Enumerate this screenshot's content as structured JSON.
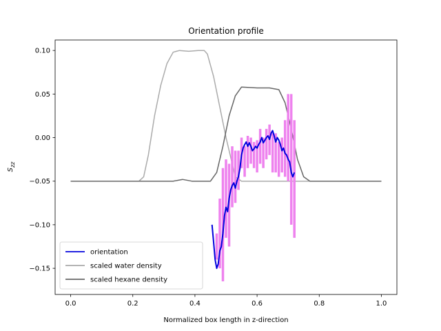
{
  "chart_data": {
    "type": "line",
    "title": "Orientation profile",
    "xlabel": "Normalized box length in z-direction",
    "ylabel": {
      "base": "S",
      "sub": "zz"
    },
    "xlim": [
      -0.05,
      1.05
    ],
    "ylim": [
      -0.18,
      0.112
    ],
    "xticks": [
      0.0,
      0.2,
      0.4,
      0.6,
      0.8,
      1.0
    ],
    "xtick_labels": [
      "0.0",
      "0.2",
      "0.4",
      "0.6",
      "0.8",
      "1.0"
    ],
    "yticks": [
      -0.15,
      -0.1,
      -0.05,
      0.0,
      0.05,
      0.1
    ],
    "ytick_labels": [
      "−0.15",
      "−0.10",
      "−0.05",
      "0.00",
      "0.05",
      "0.10"
    ],
    "grid": false,
    "legend_position": "lower-left",
    "series": [
      {
        "name": "scaled water density",
        "color": "#aaaaaa",
        "x": [
          0.0,
          0.22,
          0.235,
          0.25,
          0.27,
          0.29,
          0.31,
          0.33,
          0.35,
          0.38,
          0.41,
          0.43,
          0.44,
          0.46,
          0.48,
          0.5,
          0.52,
          0.53,
          0.55,
          1.0
        ],
        "y": [
          -0.05,
          -0.05,
          -0.045,
          -0.02,
          0.025,
          0.06,
          0.085,
          0.098,
          0.1,
          0.099,
          0.1,
          0.1,
          0.096,
          0.07,
          0.035,
          0.0,
          -0.03,
          -0.045,
          -0.05,
          -0.05
        ]
      },
      {
        "name": "scaled hexane density",
        "color": "#666666",
        "x": [
          0.0,
          0.33,
          0.36,
          0.39,
          0.45,
          0.47,
          0.49,
          0.51,
          0.53,
          0.55,
          0.6,
          0.64,
          0.67,
          0.69,
          0.71,
          0.73,
          0.75,
          0.77,
          1.0
        ],
        "y": [
          -0.05,
          -0.05,
          -0.048,
          -0.05,
          -0.05,
          -0.04,
          -0.01,
          0.025,
          0.048,
          0.058,
          0.057,
          0.057,
          0.055,
          0.04,
          0.01,
          -0.025,
          -0.045,
          -0.05,
          -0.05
        ]
      },
      {
        "name": "",
        "color": "#ee82ee",
        "x": [
          0.47,
          0.48,
          0.49,
          0.5,
          0.51,
          0.52,
          0.53,
          0.54,
          0.55,
          0.56,
          0.57,
          0.58,
          0.59,
          0.6,
          0.61,
          0.62,
          0.63,
          0.64,
          0.65,
          0.66,
          0.67,
          0.68,
          0.69,
          0.7,
          0.71,
          0.72
        ],
        "y": [
          -0.14,
          -0.125,
          -0.16,
          -0.06,
          -0.11,
          -0.025,
          -0.06,
          -0.045,
          -0.015,
          -0.035,
          -0.02,
          -0.012,
          -0.025,
          -0.022,
          -0.008,
          -0.02,
          -0.005,
          0.008,
          -0.025,
          -0.015,
          -0.03,
          -0.01,
          -0.025,
          0.05,
          -0.06,
          -0.035
        ],
        "y_low": [
          -0.14,
          -0.15,
          -0.165,
          -0.115,
          -0.125,
          -0.08,
          -0.075,
          -0.06,
          -0.035,
          -0.045,
          -0.035,
          -0.03,
          -0.035,
          -0.04,
          -0.03,
          -0.035,
          -0.025,
          -0.02,
          -0.04,
          -0.04,
          -0.045,
          -0.04,
          -0.045,
          -0.05,
          -0.1,
          -0.115
        ],
        "y_high": [
          -0.11,
          -0.07,
          -0.035,
          -0.025,
          -0.03,
          -0.01,
          -0.015,
          -0.015,
          0.0,
          -0.01,
          0.002,
          0.0,
          -0.005,
          -0.003,
          0.01,
          0.0,
          0.01,
          0.015,
          0.005,
          0.005,
          -0.005,
          0.0,
          0.02,
          0.05,
          0.05,
          0.02
        ]
      },
      {
        "name": "orientation",
        "color": "#0000dd",
        "x": [
          0.455,
          0.46,
          0.465,
          0.47,
          0.475,
          0.48,
          0.485,
          0.49,
          0.495,
          0.5,
          0.505,
          0.51,
          0.515,
          0.52,
          0.525,
          0.53,
          0.535,
          0.54,
          0.545,
          0.55,
          0.555,
          0.56,
          0.565,
          0.57,
          0.575,
          0.58,
          0.585,
          0.59,
          0.595,
          0.6,
          0.605,
          0.61,
          0.615,
          0.62,
          0.625,
          0.63,
          0.635,
          0.64,
          0.645,
          0.65,
          0.655,
          0.66,
          0.665,
          0.67,
          0.675,
          0.68,
          0.685,
          0.69,
          0.695,
          0.7,
          0.705,
          0.71,
          0.715,
          0.72
        ],
        "y": [
          -0.1,
          -0.12,
          -0.14,
          -0.15,
          -0.145,
          -0.13,
          -0.125,
          -0.11,
          -0.09,
          -0.08,
          -0.085,
          -0.07,
          -0.06,
          -0.055,
          -0.052,
          -0.058,
          -0.05,
          -0.045,
          -0.035,
          -0.02,
          -0.012,
          -0.008,
          -0.005,
          -0.01,
          -0.006,
          -0.01,
          -0.015,
          -0.013,
          -0.01,
          -0.012,
          -0.008,
          -0.005,
          0.0,
          -0.006,
          -0.003,
          0.0,
          0.002,
          -0.002,
          0.005,
          0.008,
          0.002,
          -0.005,
          0.0,
          -0.003,
          -0.008,
          -0.015,
          -0.012,
          -0.018,
          -0.02,
          -0.025,
          -0.028,
          -0.04,
          -0.045,
          -0.04
        ]
      }
    ],
    "legend": [
      {
        "label": "orientation",
        "color": "#0000dd"
      },
      {
        "label": "scaled water density",
        "color": "#aaaaaa"
      },
      {
        "label": "scaled hexane density",
        "color": "#666666"
      }
    ]
  }
}
